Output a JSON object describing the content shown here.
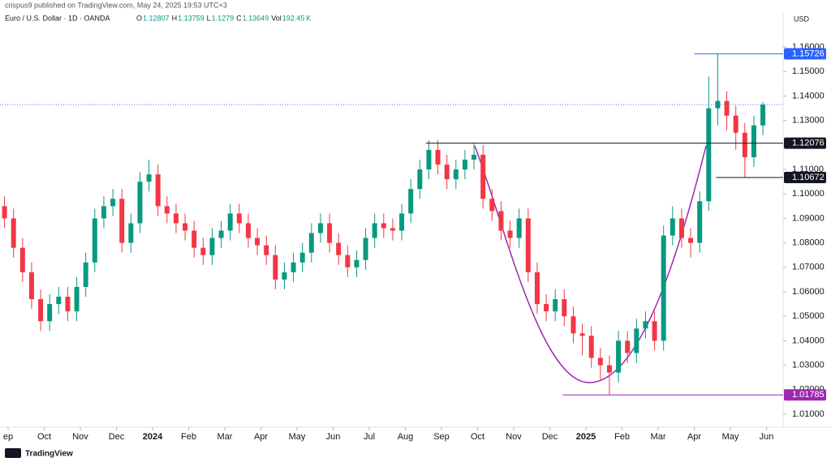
{
  "header": {
    "author_line": "crispus9 published on TradingView.com, May 24, 2025 19:53 UTC+3",
    "symbol": "Euro / U.S. Dollar · 1D · OANDA",
    "ohlc": [
      {
        "label": "O",
        "value": 1.12807
      },
      {
        "label": "H",
        "value": 1.13759
      },
      {
        "label": "L",
        "value": 1.1279
      },
      {
        "label": "C",
        "value": 1.13649
      },
      {
        "label": "Vol",
        "value": 192.45,
        "unit": "K"
      }
    ]
  },
  "footer": {
    "brand": "TradingView"
  },
  "chart_data": {
    "type": "candlestick",
    "currency": "USD",
    "up_color": "#089981",
    "down_color": "#f23645",
    "xlim": [
      -0.225,
      21.46
    ],
    "ylim": [
      1.0047,
      1.1746
    ],
    "xticks": [
      {
        "value": 0,
        "label": "ep"
      },
      {
        "value": 1,
        "label": "Oct"
      },
      {
        "value": 2,
        "label": "Nov"
      },
      {
        "value": 3,
        "label": "Dec"
      },
      {
        "value": 4,
        "label": "2024"
      },
      {
        "value": 5,
        "label": "Feb"
      },
      {
        "value": 6,
        "label": "Mar"
      },
      {
        "value": 7,
        "label": "Apr"
      },
      {
        "value": 8,
        "label": "May"
      },
      {
        "value": 9,
        "label": "Jun"
      },
      {
        "value": 10,
        "label": "Jul"
      },
      {
        "value": 11,
        "label": "Aug"
      },
      {
        "value": 12,
        "label": "Sep"
      },
      {
        "value": 13,
        "label": "Oct"
      },
      {
        "value": 14,
        "label": "Nov"
      },
      {
        "value": 15,
        "label": "Dec"
      },
      {
        "value": 16,
        "label": "2025"
      },
      {
        "value": 17,
        "label": "Feb"
      },
      {
        "value": 18,
        "label": "Mar"
      },
      {
        "value": 19,
        "label": "Apr"
      },
      {
        "value": 20,
        "label": "May"
      },
      {
        "value": 21,
        "label": "Jun"
      }
    ],
    "yticks": [
      {
        "value": 1.16,
        "label": "1.16000"
      },
      {
        "value": 1.15,
        "label": "1.15000"
      },
      {
        "value": 1.14,
        "label": "1.14000"
      },
      {
        "value": 1.13,
        "label": "1.13000"
      },
      {
        "value": 1.12,
        "label": "1.12000"
      },
      {
        "value": 1.11,
        "label": "1.11000"
      },
      {
        "value": 1.1,
        "label": "1.10000"
      },
      {
        "value": 1.09,
        "label": "1.09000"
      },
      {
        "value": 1.08,
        "label": "1.08000"
      },
      {
        "value": 1.07,
        "label": "1.07000"
      },
      {
        "value": 1.06,
        "label": "1.06000"
      },
      {
        "value": 1.05,
        "label": "1.05000"
      },
      {
        "value": 1.04,
        "label": "1.04000"
      },
      {
        "value": 1.03,
        "label": "1.03000"
      },
      {
        "value": 1.02,
        "label": "1.02000"
      },
      {
        "value": 1.01,
        "label": "1.01000"
      }
    ],
    "levels": [
      {
        "value": 1.15726,
        "from": 19.0,
        "color": "#2962ff"
      },
      {
        "value": 1.12076,
        "from": 11.57,
        "color": "#131722"
      },
      {
        "value": 1.10672,
        "from": 19.6,
        "color": "#131722"
      },
      {
        "value": 1.01785,
        "from": 15.35,
        "color": "#9c27b0"
      }
    ],
    "x": [
      -0.1,
      0.15,
      0.4,
      0.65,
      0.9,
      1.15,
      1.4,
      1.65,
      1.9,
      2.15,
      2.4,
      2.65,
      2.9,
      3.15,
      3.4,
      3.65,
      3.9,
      4.15,
      4.4,
      4.65,
      4.9,
      5.15,
      5.4,
      5.65,
      5.9,
      6.15,
      6.4,
      6.65,
      6.9,
      7.15,
      7.4,
      7.65,
      7.9,
      8.15,
      8.4,
      8.65,
      8.9,
      9.15,
      9.4,
      9.65,
      9.9,
      10.15,
      10.4,
      10.65,
      10.9,
      11.15,
      11.4,
      11.65,
      11.9,
      12.15,
      12.4,
      12.65,
      12.9,
      13.15,
      13.4,
      13.65,
      13.9,
      14.15,
      14.4,
      14.65,
      14.9,
      15.15,
      15.4,
      15.65,
      15.9,
      16.15,
      16.4,
      16.65,
      16.9,
      17.15,
      17.4,
      17.65,
      17.9,
      18.15,
      18.4,
      18.65,
      18.9,
      19.15,
      19.4,
      19.65,
      19.9,
      20.15,
      20.4,
      20.65,
      20.9
    ],
    "open": [
      1.095,
      1.09,
      1.078,
      1.068,
      1.057,
      1.048,
      1.055,
      1.058,
      1.052,
      1.062,
      1.072,
      1.09,
      1.095,
      1.098,
      1.08,
      1.088,
      1.105,
      1.108,
      1.095,
      1.092,
      1.088,
      1.085,
      1.078,
      1.075,
      1.082,
      1.085,
      1.092,
      1.088,
      1.082,
      1.079,
      1.075,
      1.065,
      1.068,
      1.072,
      1.076,
      1.084,
      1.088,
      1.08,
      1.075,
      1.07,
      1.073,
      1.082,
      1.088,
      1.086,
      1.085,
      1.092,
      1.102,
      1.11,
      1.118,
      1.112,
      1.106,
      1.11,
      1.114,
      1.116,
      1.098,
      1.093,
      1.085,
      1.082,
      1.09,
      1.068,
      1.055,
      1.052,
      1.057,
      1.05,
      1.043,
      1.042,
      1.033,
      1.03,
      1.027,
      1.04,
      1.035,
      1.045,
      1.048,
      1.04,
      1.083,
      1.09,
      1.082,
      1.08,
      1.097,
      1.135,
      1.138,
      1.132,
      1.125,
      1.115,
      1.128
    ],
    "high": [
      1.099,
      1.094,
      1.082,
      1.072,
      1.061,
      1.059,
      1.062,
      1.062,
      1.066,
      1.076,
      1.094,
      1.099,
      1.102,
      1.102,
      1.092,
      1.109,
      1.114,
      1.112,
      1.099,
      1.096,
      1.092,
      1.089,
      1.082,
      1.086,
      1.089,
      1.096,
      1.096,
      1.092,
      1.086,
      1.083,
      1.079,
      1.072,
      1.076,
      1.08,
      1.088,
      1.092,
      1.092,
      1.084,
      1.079,
      1.077,
      1.086,
      1.092,
      1.092,
      1.09,
      1.096,
      1.106,
      1.114,
      1.122,
      1.122,
      1.116,
      1.114,
      1.118,
      1.121,
      1.12,
      1.102,
      1.097,
      1.089,
      1.094,
      1.094,
      1.072,
      1.059,
      1.061,
      1.061,
      1.054,
      1.047,
      1.046,
      1.037,
      1.034,
      1.044,
      1.044,
      1.049,
      1.052,
      1.052,
      1.087,
      1.095,
      1.094,
      1.086,
      1.101,
      1.148,
      1.1573,
      1.142,
      1.136,
      1.129,
      1.132,
      1.1376
    ],
    "low": [
      1.086,
      1.074,
      1.064,
      1.053,
      1.044,
      1.044,
      1.051,
      1.048,
      1.048,
      1.058,
      1.068,
      1.086,
      1.091,
      1.076,
      1.076,
      1.084,
      1.101,
      1.091,
      1.088,
      1.084,
      1.081,
      1.074,
      1.071,
      1.071,
      1.078,
      1.081,
      1.084,
      1.078,
      1.075,
      1.071,
      1.061,
      1.061,
      1.064,
      1.068,
      1.072,
      1.08,
      1.076,
      1.071,
      1.066,
      1.066,
      1.069,
      1.078,
      1.082,
      1.081,
      1.081,
      1.088,
      1.098,
      1.106,
      1.108,
      1.102,
      1.102,
      1.106,
      1.11,
      1.094,
      1.089,
      1.081,
      1.078,
      1.078,
      1.064,
      1.051,
      1.048,
      1.048,
      1.046,
      1.039,
      1.034,
      1.029,
      1.024,
      1.0178,
      1.023,
      1.031,
      1.031,
      1.041,
      1.036,
      1.036,
      1.079,
      1.078,
      1.074,
      1.076,
      1.093,
      1.128,
      1.126,
      1.118,
      1.1067,
      1.111,
      1.124
    ],
    "close": [
      1.09,
      1.078,
      1.068,
      1.057,
      1.048,
      1.055,
      1.058,
      1.052,
      1.062,
      1.072,
      1.09,
      1.095,
      1.098,
      1.08,
      1.088,
      1.105,
      1.108,
      1.095,
      1.092,
      1.088,
      1.085,
      1.078,
      1.075,
      1.082,
      1.085,
      1.092,
      1.088,
      1.082,
      1.079,
      1.075,
      1.065,
      1.068,
      1.072,
      1.076,
      1.084,
      1.088,
      1.08,
      1.075,
      1.07,
      1.073,
      1.082,
      1.088,
      1.086,
      1.085,
      1.092,
      1.102,
      1.11,
      1.118,
      1.112,
      1.106,
      1.11,
      1.114,
      1.116,
      1.098,
      1.093,
      1.085,
      1.082,
      1.09,
      1.068,
      1.055,
      1.052,
      1.057,
      1.05,
      1.043,
      1.042,
      1.033,
      1.03,
      1.027,
      1.04,
      1.035,
      1.045,
      1.048,
      1.04,
      1.083,
      1.09,
      1.082,
      1.08,
      1.097,
      1.135,
      1.138,
      1.132,
      1.125,
      1.115,
      1.128,
      1.1365
    ]
  }
}
